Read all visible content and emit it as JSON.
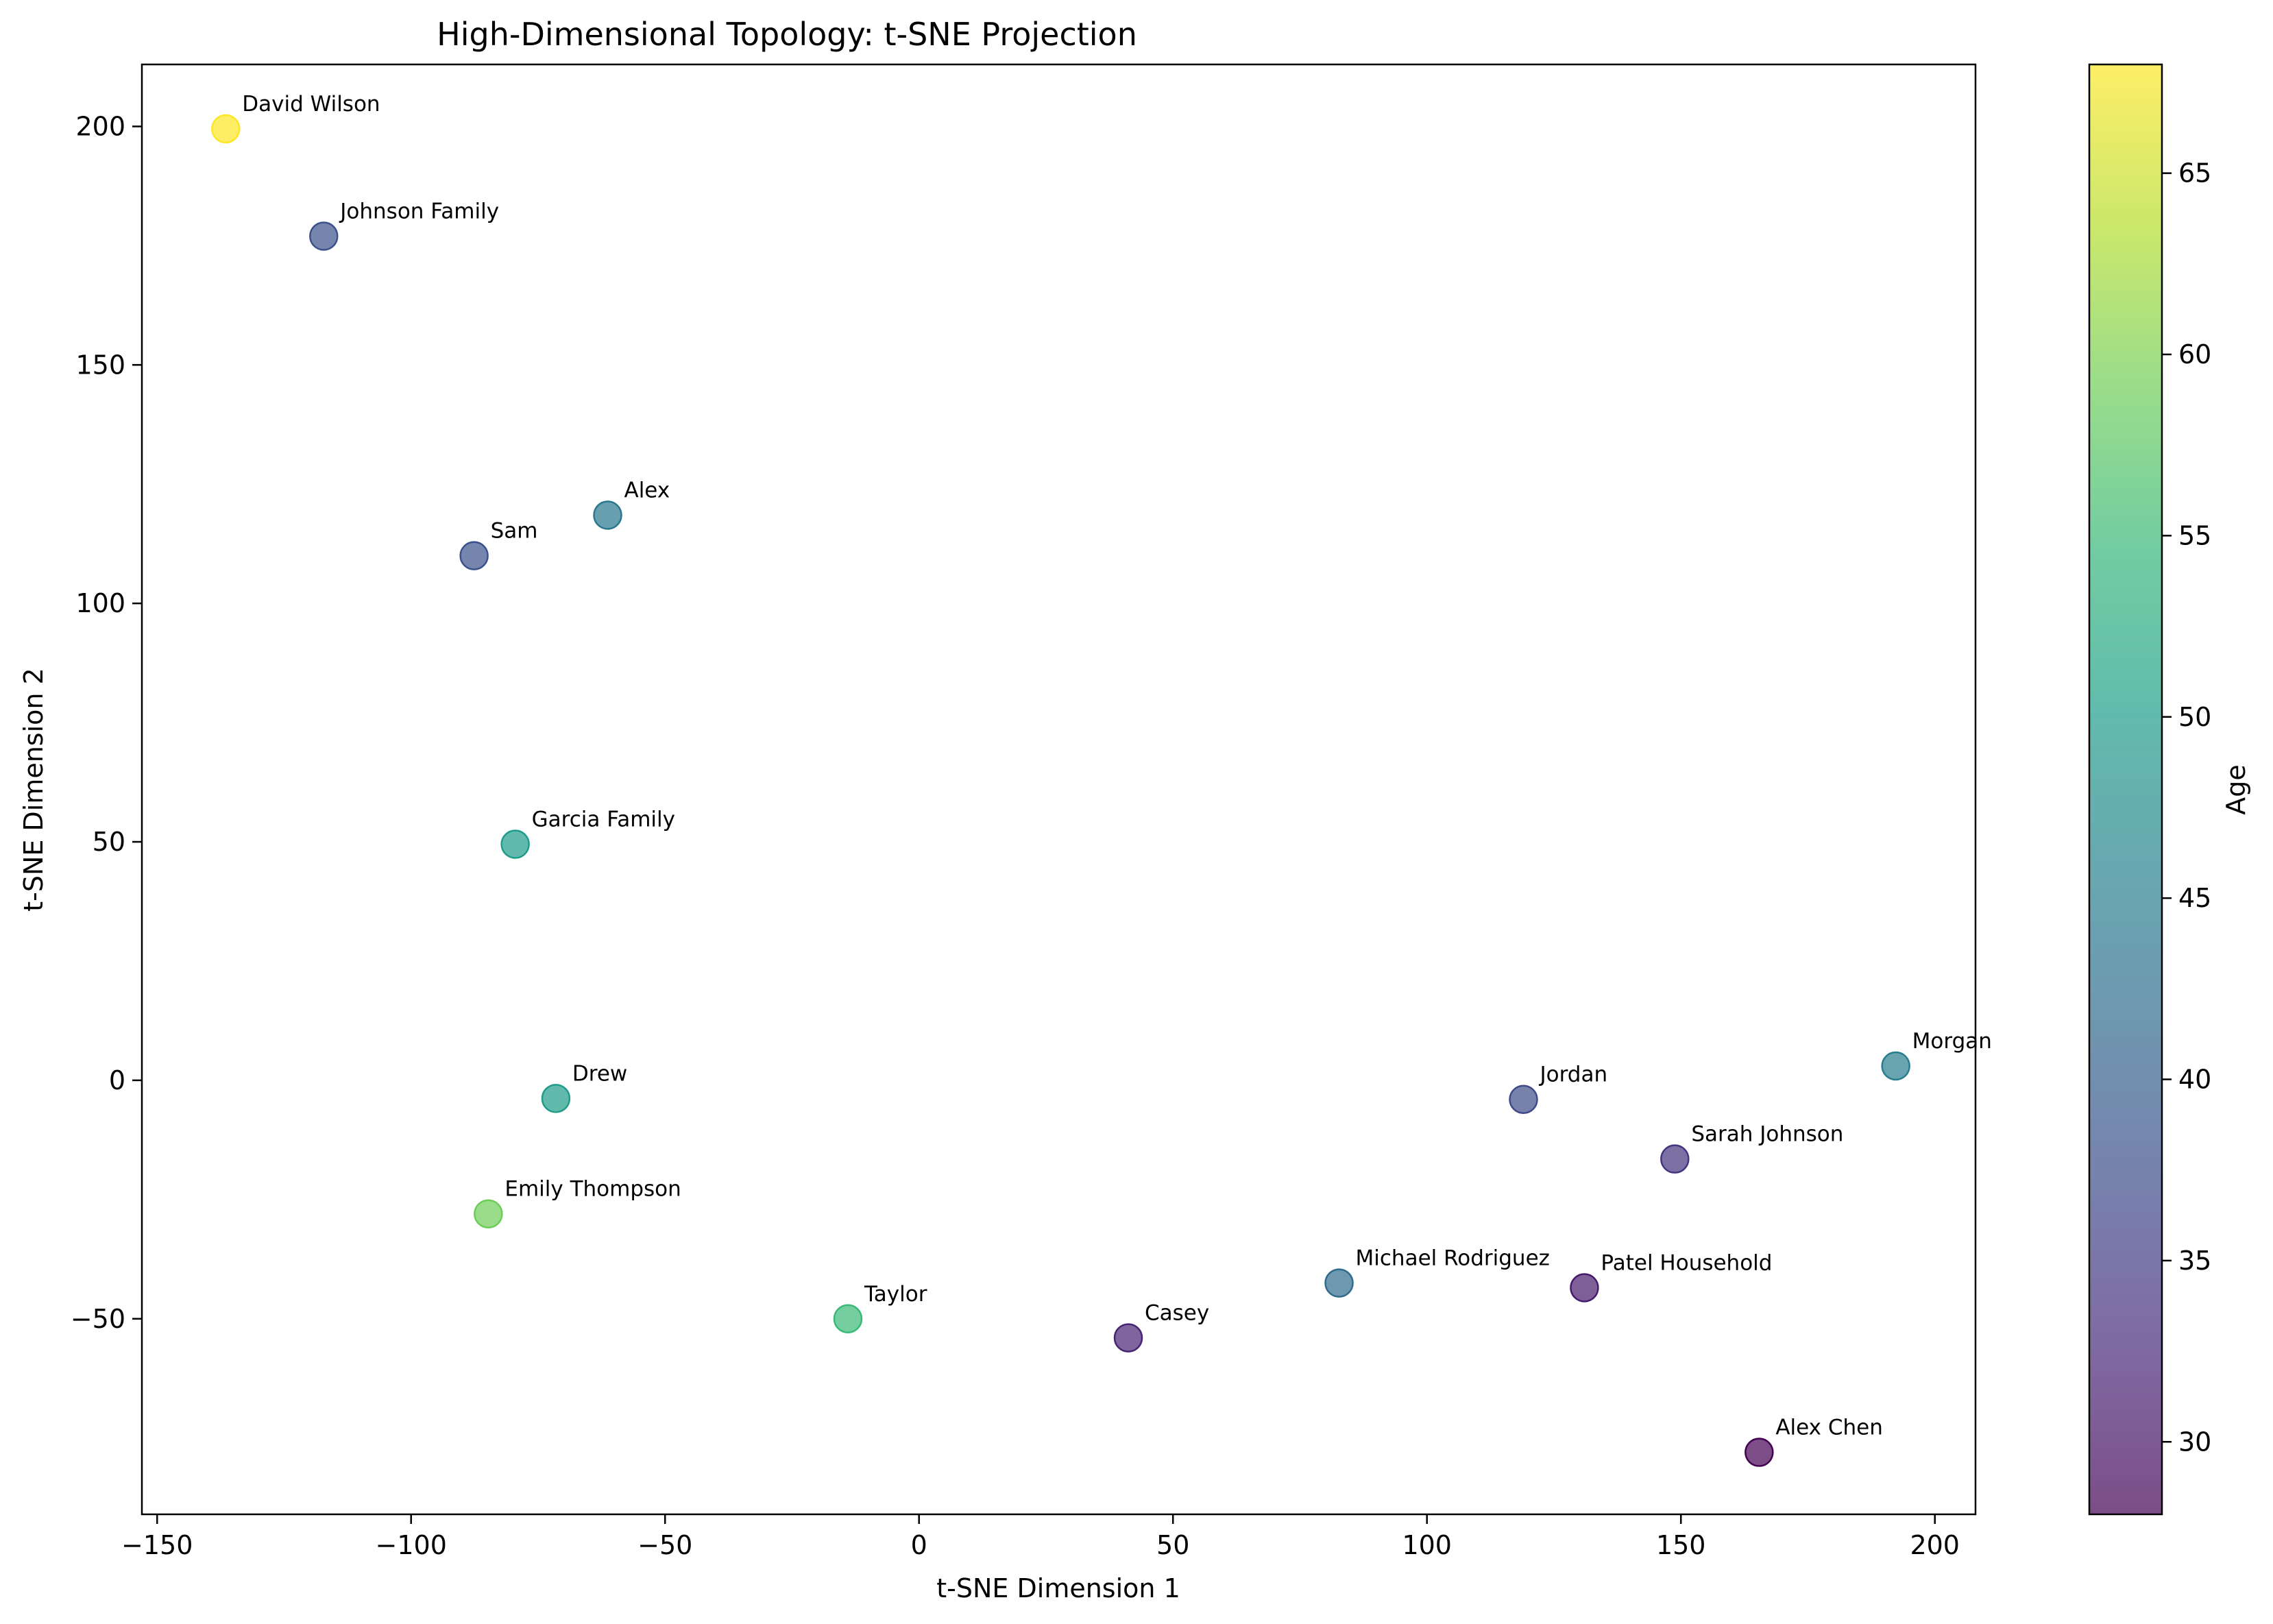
{
  "chart_data": {
    "type": "scatter",
    "title": "High-Dimensional Topology: t-SNE Projection",
    "xlabel": "t-SNE Dimension 1",
    "ylabel": "t-SNE Dimension 2",
    "xlim": [
      -153,
      208
    ],
    "ylim": [
      -91,
      213
    ],
    "x_ticks": [
      -150,
      -100,
      -50,
      0,
      50,
      100,
      150,
      200
    ],
    "y_ticks": [
      -50,
      0,
      50,
      100,
      150,
      200
    ],
    "x_tick_labels": [
      "−150",
      "−100",
      "−50",
      "0",
      "50",
      "100",
      "150",
      "200"
    ],
    "y_tick_labels": [
      "−50",
      "0",
      "50",
      "100",
      "150",
      "200"
    ],
    "grid": false,
    "colorbar": {
      "label": "Age",
      "colormap": "viridis",
      "range": [
        28,
        68
      ],
      "ticks": [
        30,
        35,
        40,
        45,
        50,
        55,
        60,
        65
      ],
      "tick_labels": [
        "30",
        "35",
        "40",
        "45",
        "50",
        "55",
        "60",
        "65"
      ]
    },
    "points": [
      {
        "label": "David Wilson",
        "x": -136.5,
        "y": 199.5,
        "age": 68
      },
      {
        "label": "Johnson Family",
        "x": -117.2,
        "y": 177.0,
        "age": 38
      },
      {
        "label": "Alex",
        "x": -61.3,
        "y": 118.5,
        "age": 44
      },
      {
        "label": "Sam",
        "x": -87.6,
        "y": 110.0,
        "age": 38
      },
      {
        "label": "Garcia Family",
        "x": -79.5,
        "y": 49.5,
        "age": 50
      },
      {
        "label": "Drew",
        "x": -71.5,
        "y": -3.8,
        "age": 50
      },
      {
        "label": "Emily Thompson",
        "x": -84.8,
        "y": -28.0,
        "age": 59
      },
      {
        "label": "Taylor",
        "x": -14.0,
        "y": -50.0,
        "age": 55
      },
      {
        "label": "Casey",
        "x": 41.2,
        "y": -54.0,
        "age": 32
      },
      {
        "label": "Michael Rodriguez",
        "x": 82.7,
        "y": -42.5,
        "age": 42
      },
      {
        "label": "Patel Household",
        "x": 131.0,
        "y": -43.5,
        "age": 31
      },
      {
        "label": "Jordan",
        "x": 119.0,
        "y": -4.0,
        "age": 37
      },
      {
        "label": "Sarah Johnson",
        "x": 148.8,
        "y": -16.5,
        "age": 34
      },
      {
        "label": "Morgan",
        "x": 192.3,
        "y": 3.0,
        "age": 45
      },
      {
        "label": "Alex Chen",
        "x": 165.4,
        "y": -78.0,
        "age": 28
      }
    ]
  }
}
